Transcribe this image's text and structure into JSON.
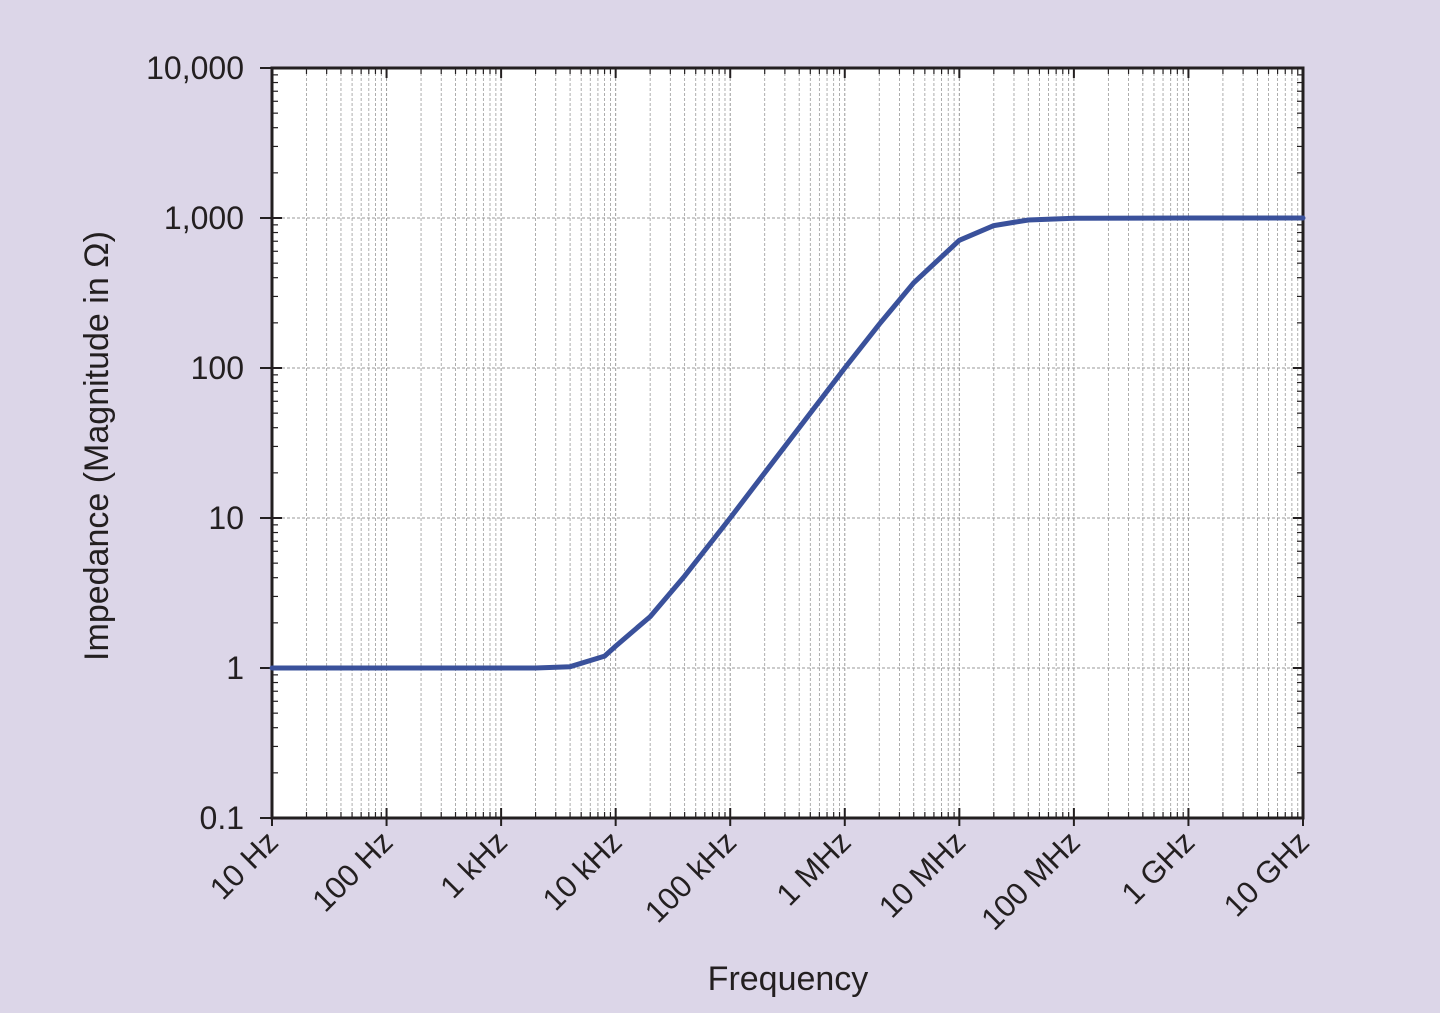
{
  "chart_data": {
    "type": "line",
    "title": "",
    "xlabel": "Frequency",
    "ylabel": "Impedance (Magnitude in Ω)",
    "x_scale": "log",
    "y_scale": "log",
    "xlim": [
      10,
      10000000000
    ],
    "ylim": [
      0.1,
      10000
    ],
    "grid": true,
    "legend": "none",
    "x_ticks": [
      {
        "value": 10,
        "label": "10 Hz"
      },
      {
        "value": 100,
        "label": "100 Hz"
      },
      {
        "value": 1000,
        "label": "1 kHz"
      },
      {
        "value": 10000,
        "label": "10 kHz"
      },
      {
        "value": 100000,
        "label": "100 kHz"
      },
      {
        "value": 1000000,
        "label": "1 MHz"
      },
      {
        "value": 10000000,
        "label": "10 MHz"
      },
      {
        "value": 100000000,
        "label": "100 MHz"
      },
      {
        "value": 1000000000,
        "label": "1 GHz"
      },
      {
        "value": 10000000000,
        "label": "10 GHz"
      }
    ],
    "y_ticks": [
      {
        "value": 0.1,
        "label": "0.1"
      },
      {
        "value": 1,
        "label": "1"
      },
      {
        "value": 10,
        "label": "10"
      },
      {
        "value": 100,
        "label": "100"
      },
      {
        "value": 1000,
        "label": "1,000"
      },
      {
        "value": 10000,
        "label": "10,000"
      }
    ],
    "series": [
      {
        "color": "#3a519b",
        "x": [
          10,
          100,
          1000,
          2000,
          4000,
          8000,
          10000,
          20000,
          40000,
          100000,
          200000,
          400000,
          1000000,
          2000000,
          4000000,
          10000000,
          20000000,
          40000000,
          100000000,
          1000000000,
          10000000000
        ],
        "y": [
          1,
          1,
          1,
          1,
          1.02,
          1.2,
          1.4,
          2.2,
          4.1,
          10,
          20,
          40,
          100,
          196,
          370,
          710,
          890,
          970,
          995,
          1000,
          1000
        ]
      }
    ],
    "colors": {
      "background": "#dcd6e8",
      "plot_area": "#ffffff",
      "axis": "#231f20",
      "grid": "#9a9a9a",
      "line": "#3a519b"
    }
  }
}
